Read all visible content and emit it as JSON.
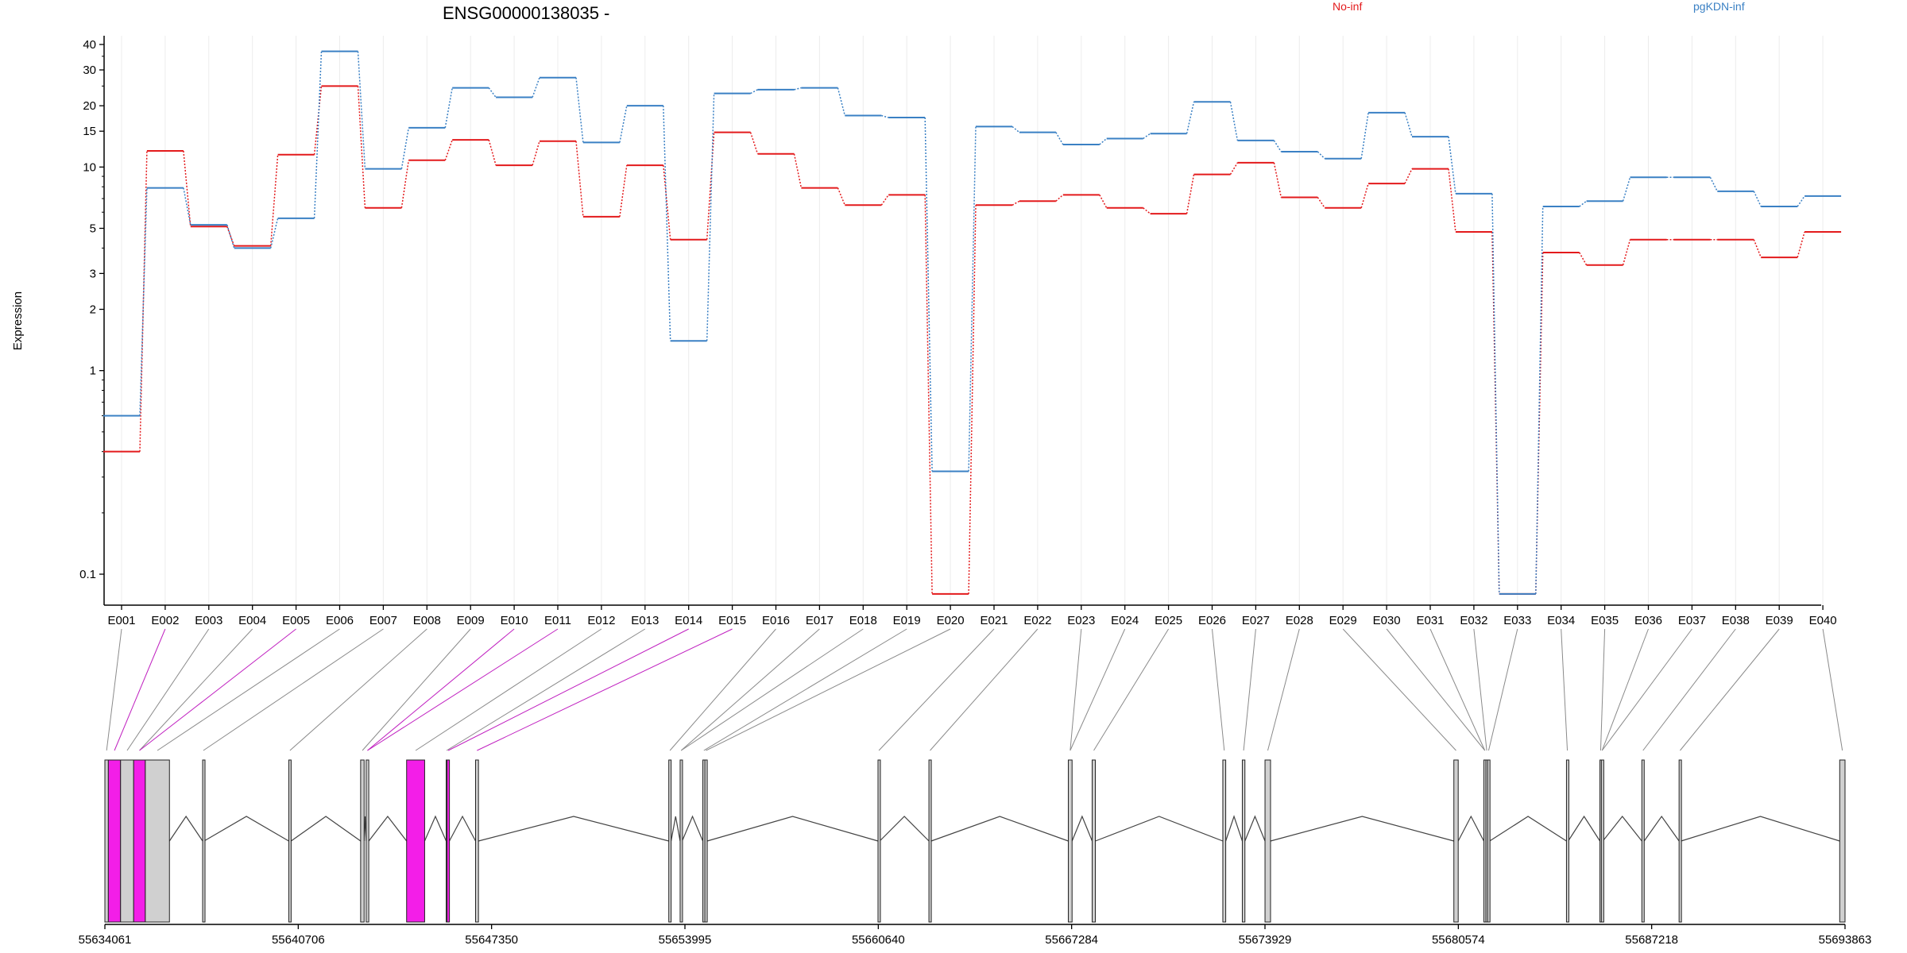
{
  "chart_data": {
    "type": "line",
    "title": "ENSG00000138035 -",
    "ylabel": "Expression",
    "xlabel": "",
    "yscale": "log",
    "ylim": [
      0.08,
      43
    ],
    "yticks": [
      0.1,
      1,
      2,
      3,
      5,
      10,
      15,
      20,
      30,
      40
    ],
    "ytick_labels": [
      "0.1",
      "1",
      "2",
      "3",
      "5",
      "10",
      "15",
      "20",
      "30",
      "40"
    ],
    "grid": "vertical",
    "legend": "top-right",
    "categories": [
      "E001",
      "E002",
      "E003",
      "E004",
      "E005",
      "E006",
      "E007",
      "E008",
      "E009",
      "E010",
      "E011",
      "E012",
      "E013",
      "E014",
      "E015",
      "E016",
      "E017",
      "E018",
      "E019",
      "E020",
      "E021",
      "E022",
      "E023",
      "E024",
      "E025",
      "E026",
      "E027",
      "E028",
      "E029",
      "E030",
      "E031",
      "E032",
      "E033",
      "E034",
      "E035",
      "E036",
      "E037",
      "E038",
      "E039",
      "E040"
    ],
    "series": [
      {
        "name": "No-inf",
        "color": "#e31a1c",
        "values": [
          0.4,
          12,
          5.1,
          4.1,
          11.5,
          25,
          6.3,
          10.8,
          13.6,
          10.2,
          13.4,
          5.7,
          10.2,
          4.4,
          14.8,
          11.6,
          7.9,
          6.5,
          7.3,
          0.08,
          6.5,
          6.8,
          7.3,
          6.3,
          5.9,
          9.2,
          10.5,
          7.1,
          6.3,
          8.3,
          9.8,
          4.8,
          0.08,
          3.8,
          3.3,
          4.4,
          4.4,
          4.4,
          3.6,
          4.8
        ]
      },
      {
        "name": "pgKDN-inf",
        "color": "#3a80c4",
        "values": [
          0.6,
          7.9,
          5.2,
          4.0,
          5.6,
          37,
          9.8,
          15.6,
          24.5,
          22,
          27.5,
          13.2,
          20,
          1.4,
          23,
          24,
          24.5,
          17.9,
          17.5,
          0.32,
          15.8,
          14.8,
          12.9,
          13.8,
          14.6,
          20.9,
          13.5,
          11.9,
          11.0,
          18.5,
          14.1,
          7.4,
          0.08,
          6.4,
          6.8,
          8.9,
          8.9,
          7.6,
          6.4,
          7.2
        ]
      }
    ],
    "gene_model": {
      "coordinate_ticks": [
        55634061,
        55640706,
        55647350,
        55653995,
        55660640,
        55667284,
        55673929,
        55680574,
        55687218,
        55693863
      ],
      "exons": [
        {
          "start": 55634061,
          "end": 55634180,
          "highlighted": false
        },
        {
          "start": 55634180,
          "end": 55634600,
          "highlighted": true
        },
        {
          "start": 55634600,
          "end": 55635050,
          "highlighted": false
        },
        {
          "start": 55635050,
          "end": 55635450,
          "highlighted": true
        },
        {
          "start": 55635450,
          "end": 55636280,
          "highlighted": false
        },
        {
          "start": 55637420,
          "end": 55637470,
          "highlighted": false
        },
        {
          "start": 55640380,
          "end": 55640460,
          "highlighted": false
        },
        {
          "start": 55642850,
          "end": 55642970,
          "highlighted": false
        },
        {
          "start": 55643040,
          "end": 55643130,
          "highlighted": false
        },
        {
          "start": 55644430,
          "end": 55645050,
          "highlighted": true
        },
        {
          "start": 55645790,
          "end": 55645820,
          "highlighted": false
        },
        {
          "start": 55645820,
          "end": 55645900,
          "highlighted": true
        },
        {
          "start": 55646800,
          "end": 55646900,
          "highlighted": false
        },
        {
          "start": 55653440,
          "end": 55653520,
          "highlighted": false
        },
        {
          "start": 55653830,
          "end": 55653900,
          "highlighted": false
        },
        {
          "start": 55654610,
          "end": 55654680,
          "highlighted": false
        },
        {
          "start": 55654680,
          "end": 55654760,
          "highlighted": false
        },
        {
          "start": 55660630,
          "end": 55660690,
          "highlighted": false
        },
        {
          "start": 55662380,
          "end": 55662460,
          "highlighted": false
        },
        {
          "start": 55667170,
          "end": 55667300,
          "highlighted": false
        },
        {
          "start": 55667990,
          "end": 55668100,
          "highlighted": false
        },
        {
          "start": 55672480,
          "end": 55672580,
          "highlighted": false
        },
        {
          "start": 55673150,
          "end": 55673240,
          "highlighted": false
        },
        {
          "start": 55673930,
          "end": 55674120,
          "highlighted": false
        },
        {
          "start": 55680420,
          "end": 55680570,
          "highlighted": false
        },
        {
          "start": 55681450,
          "end": 55681520,
          "highlighted": false
        },
        {
          "start": 55681520,
          "end": 55681580,
          "highlighted": false
        },
        {
          "start": 55681580,
          "end": 55681650,
          "highlighted": false
        },
        {
          "start": 55684290,
          "end": 55684350,
          "highlighted": false
        },
        {
          "start": 55685440,
          "end": 55685490,
          "highlighted": false
        },
        {
          "start": 55685490,
          "end": 55685540,
          "highlighted": false
        },
        {
          "start": 55686880,
          "end": 55686960,
          "highlighted": false
        },
        {
          "start": 55688160,
          "end": 55688230,
          "highlighted": false
        },
        {
          "start": 55693680,
          "end": 55693863,
          "highlighted": false
        }
      ]
    }
  }
}
